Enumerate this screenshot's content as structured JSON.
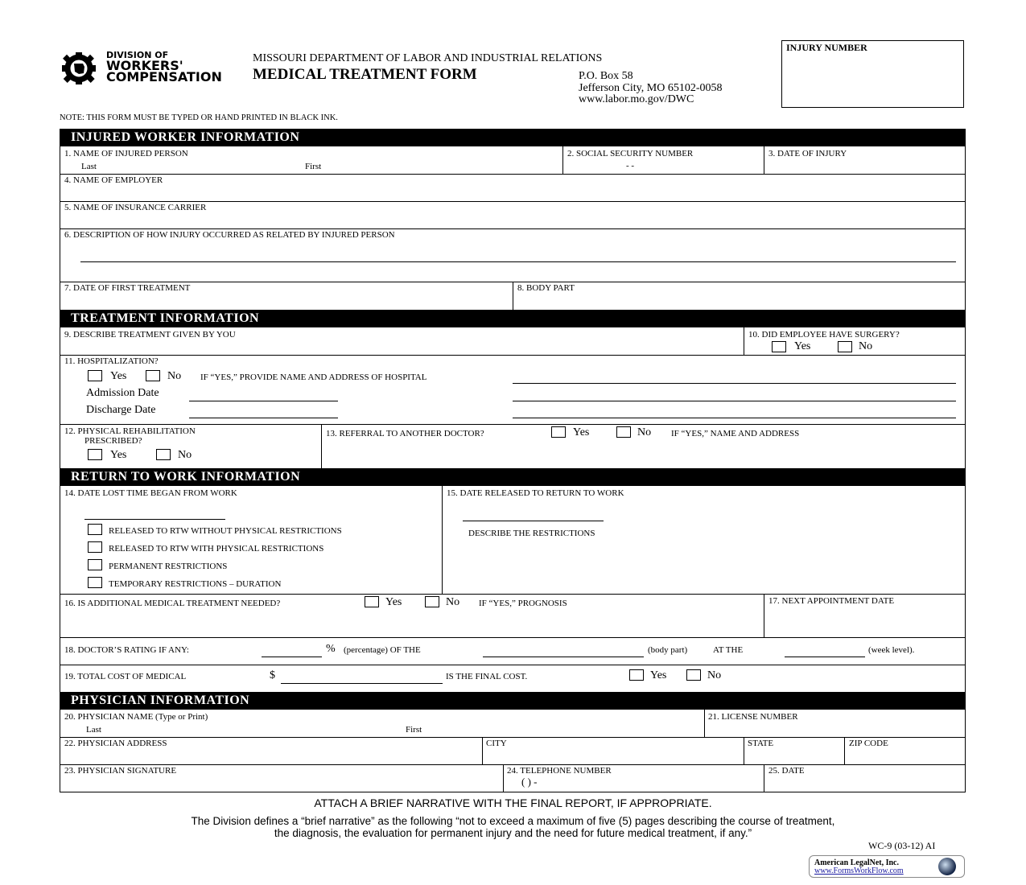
{
  "header": {
    "logo": {
      "line1": "DIVISION OF",
      "line2": "WORKERS'",
      "line3": "COMPENSATION"
    },
    "department": "MISSOURI DEPARTMENT OF LABOR AND INDUSTRIAL RELATIONS",
    "title": "MEDICAL TREATMENT FORM",
    "address": [
      "P.O. Box 58",
      "Jefferson City, MO 65102-0058",
      "www.labor.mo.gov/DWC"
    ],
    "injury_number_label": "INJURY NUMBER",
    "note": "NOTE:  THIS FORM MUST BE TYPED OR HAND PRINTED IN BLACK INK."
  },
  "sections": {
    "injured": "INJURED WORKER INFORMATION",
    "treatment": "TREATMENT INFORMATION",
    "rtw": "RETURN TO WORK INFORMATION",
    "physician": "PHYSICIAN INFORMATION"
  },
  "fields": {
    "f1": "1. NAME OF INJURED PERSON",
    "last": "Last",
    "first": "First",
    "f2": "2. SOCIAL SECURITY NUMBER",
    "ssn_sep": "-          -",
    "f3": "3. DATE OF INJURY",
    "f4": "4. NAME OF EMPLOYER",
    "f5": "5. NAME OF INSURANCE CARRIER",
    "f6": "6. DESCRIPTION OF HOW INJURY OCCURRED AS RELATED BY INJURED PERSON",
    "f7": "7. DATE OF FIRST TREATMENT",
    "f8": "8. BODY PART",
    "f9": "9. DESCRIBE TREATMENT GIVEN BY YOU",
    "f10": "10. DID EMPLOYEE HAVE SURGERY?",
    "f11": "11. HOSPITALIZATION?",
    "f11_if": "IF “YES,” PROVIDE NAME AND ADDRESS OF HOSPITAL",
    "admission": "Admission Date",
    "discharge": "Discharge Date",
    "f12a": "12. PHYSICAL REHABILITATION",
    "f12b": "PRESCRIBED?",
    "f13": "13. REFERRAL TO ANOTHER DOCTOR?",
    "f13_if": "IF “YES,” NAME AND ADDRESS",
    "f14": "14. DATE LOST TIME BEGAN FROM WORK",
    "f15": "15. DATE RELEASED TO RETURN TO WORK",
    "describe_restrictions": "DESCRIBE THE RESTRICTIONS",
    "rtw_options": [
      "RELEASED TO RTW WITHOUT PHYSICAL RESTRICTIONS",
      "RELEASED TO RTW WITH PHYSICAL RESTRICTIONS",
      "PERMANENT RESTRICTIONS",
      "TEMPORARY RESTRICTIONS – DURATION"
    ],
    "f16": "16. IS ADDITIONAL MEDICAL TREATMENT NEEDED?",
    "f16_if": "IF “YES,” PROGNOSIS",
    "f17": "17. NEXT APPOINTMENT DATE",
    "f18": "18. DOCTOR’S RATING IF ANY:",
    "pct": "%",
    "percentage": "(percentage)   OF THE",
    "body_part": "(body part)",
    "at_the": "AT THE",
    "week_level": "(week level).",
    "f19": "19. TOTAL COST OF MEDICAL",
    "dollar": "$",
    "final_cost": "IS THE FINAL COST.",
    "f20": "20. PHYSICIAN NAME (Type or Print)",
    "f21": "21. LICENSE NUMBER",
    "f22": "22. PHYSICIAN ADDRESS",
    "city": "CITY",
    "state": "STATE",
    "zip": "ZIP CODE",
    "f23": "23. PHYSICIAN SIGNATURE",
    "f24": "24. TELEPHONE NUMBER",
    "phone_fmt": "(           )          -",
    "f25": "25. DATE",
    "yes": "Yes",
    "no": "No"
  },
  "footer": {
    "attach": "ATTACH A BRIEF NARRATIVE WITH THE FINAL REPORT, IF APPROPRIATE.",
    "def1": "The Division defines a “brief narrative” as the following “not to exceed a maximum of five (5) pages describing the course of treatment,",
    "def2": "the diagnosis, the evaluation for permanent injury and the need for future medical treatment, if any.”",
    "form_code": "WC-9 (03-12)  AI",
    "vendor": "American LegalNet, Inc.",
    "vendor_url": "www.FormsWorkFlow.com"
  }
}
